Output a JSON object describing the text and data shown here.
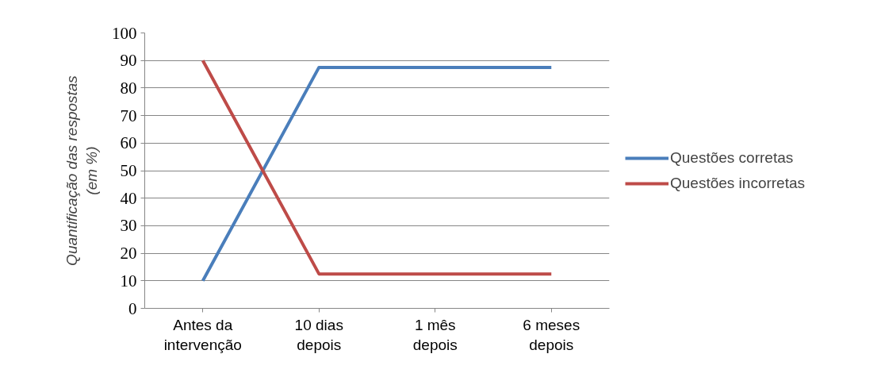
{
  "chart_data": {
    "type": "line",
    "ylabel": "Quantificação das respostas (em %)",
    "categories": [
      "Antes da intervenção",
      "10 dias depois",
      "1 mês depois",
      "6 meses depois"
    ],
    "series": [
      {
        "name": "Questões corretas",
        "color": "#4a7ebb",
        "values": [
          10,
          87.5,
          87.5,
          87.5
        ]
      },
      {
        "name": "Questões incorretas",
        "color": "#be4b48",
        "values": [
          90,
          12.5,
          12.5,
          12.5
        ]
      }
    ],
    "ylim": [
      0,
      100
    ],
    "yticks": [
      0,
      10,
      20,
      30,
      40,
      50,
      60,
      70,
      80,
      90,
      100
    ],
    "grid": "y",
    "legend": "right",
    "marker": "none",
    "line_style": "solid"
  }
}
